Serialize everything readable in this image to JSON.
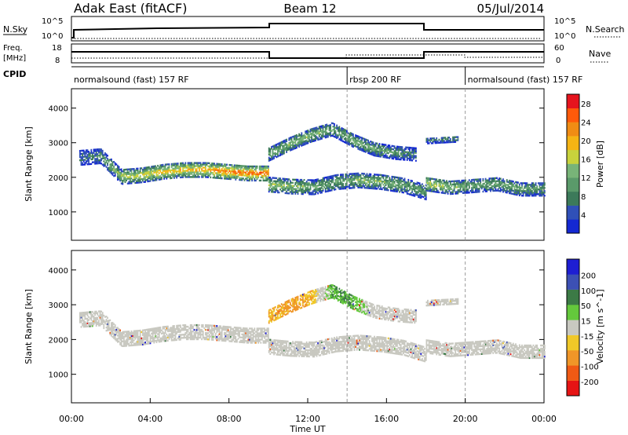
{
  "header": {
    "station": "Adak East (fitACF)",
    "beam": "Beam 12",
    "date": "05/Jul/2014"
  },
  "strips": {
    "nsky_label": "N.Sky",
    "nsearch_label": "N.Search",
    "log_ticks": [
      "10^5",
      "10^0"
    ],
    "freq_label_1": "Freq.",
    "freq_label_2": "[MHz]",
    "freq_ticks": [
      "18",
      "8"
    ],
    "nave_label": "Nave",
    "nave_ticks": [
      "60",
      "0"
    ],
    "cpid_label": "CPID",
    "cpid_segments": [
      {
        "label": "normalsound (fast) 157 RF",
        "start_hour": 0,
        "end_hour": 14
      },
      {
        "label": "rbsp 200 RF",
        "start_hour": 14,
        "end_hour": 20
      },
      {
        "label": "normalsound (fast) 157 RF",
        "start_hour": 20,
        "end_hour": 24
      }
    ]
  },
  "chart_data": [
    {
      "type": "heatmap",
      "title": "",
      "ylabel": "Slant Range [km]",
      "ylim": [
        180,
        4560
      ],
      "yticks": [
        1000,
        2000,
        3000,
        4000
      ],
      "xlim": [
        0,
        24
      ],
      "colorbar": {
        "label": "Power [dB]",
        "ticks": [
          4,
          8,
          12,
          16,
          20,
          24,
          28
        ],
        "range": [
          0,
          30
        ],
        "colors": [
          "#1428d2",
          "#3050b8",
          "#3c7a5a",
          "#5a9a6a",
          "#78b478",
          "#c8d23c",
          "#f5b414",
          "#f08c14",
          "#ff5a0a",
          "#e6141e"
        ]
      },
      "echo_bands": [
        {
          "start_hour": 0.4,
          "end_hour": 10.0,
          "range_km": [
            2550,
            2600,
            2000,
            2050,
            2150,
            2200,
            2200,
            2150,
            2100,
            2100
          ],
          "width_km": 420,
          "level_db": [
            6,
            10,
            16,
            18,
            20,
            20,
            22,
            24,
            25,
            26
          ]
        },
        {
          "start_hour": 10.0,
          "end_hour": 18.0,
          "range_km": [
            1780,
            1720,
            1700,
            1850,
            1900,
            1850,
            1750,
            1550
          ],
          "width_km": 420,
          "level_db": [
            16,
            14,
            12,
            12,
            14,
            14,
            12,
            10
          ]
        },
        {
          "start_hour": 10.0,
          "end_hour": 17.5,
          "range_km": [
            2650,
            2950,
            3200,
            3380,
            3050,
            2800,
            2700,
            2650
          ],
          "width_km": 380,
          "level_db": [
            12,
            14,
            14,
            12,
            14,
            12,
            10,
            8
          ]
        },
        {
          "start_hour": 18.0,
          "end_hour": 19.6,
          "range_km": [
            3050,
            3100
          ],
          "width_km": 180,
          "level_db": [
            8,
            8
          ]
        },
        {
          "start_hour": 18.0,
          "end_hour": 24.0,
          "range_km": [
            1800,
            1700,
            1750,
            1800,
            1650,
            1650
          ],
          "width_km": 400,
          "level_db": [
            18,
            14,
            12,
            12,
            12,
            10
          ]
        }
      ]
    },
    {
      "type": "heatmap",
      "title": "",
      "ylabel": "Slant Range [km]",
      "xlabel": "Time UT",
      "ylim": [
        180,
        4560
      ],
      "yticks": [
        1000,
        2000,
        3000,
        4000
      ],
      "xlim": [
        0,
        24
      ],
      "xticks": [
        "00:00",
        "04:00",
        "08:00",
        "12:00",
        "16:00",
        "20:00",
        "00:00"
      ],
      "colorbar": {
        "label": "Velocity [m s^-1]",
        "ticks": [
          200,
          100,
          50,
          15,
          -15,
          -50,
          -100,
          -200
        ],
        "colors": [
          "#1e1ed2",
          "#3c50b4",
          "#3c7a46",
          "#64c83c",
          "#c8c8c0",
          "#f0c828",
          "#f09628",
          "#f05a14",
          "#e61414"
        ]
      },
      "echo_bands": [
        {
          "start_hour": 0.4,
          "end_hour": 10.0,
          "range_km": [
            2550,
            2600,
            2000,
            2050,
            2150,
            2200,
            2200,
            2150,
            2100,
            2100
          ],
          "width_km": 420,
          "velocity": [
            0,
            0,
            0,
            0,
            0,
            0,
            0,
            0,
            0,
            0
          ]
        },
        {
          "start_hour": 10.0,
          "end_hour": 18.0,
          "range_km": [
            1780,
            1720,
            1700,
            1850,
            1900,
            1850,
            1750,
            1550
          ],
          "width_km": 420,
          "velocity": [
            0,
            0,
            0,
            0,
            0,
            0,
            0,
            0
          ]
        },
        {
          "start_hour": 10.0,
          "end_hour": 17.5,
          "range_km": [
            2650,
            2950,
            3200,
            3380,
            3050,
            2800,
            2700,
            2650
          ],
          "width_km": 380,
          "velocity": [
            -30,
            -40,
            -30,
            30,
            30,
            0,
            0,
            0
          ]
        },
        {
          "start_hour": 18.0,
          "end_hour": 19.6,
          "range_km": [
            3050,
            3100
          ],
          "width_km": 180,
          "velocity": [
            0,
            0
          ]
        },
        {
          "start_hour": 18.0,
          "end_hour": 24.0,
          "range_km": [
            1800,
            1700,
            1750,
            1800,
            1650,
            1650
          ],
          "width_km": 400,
          "velocity": [
            0,
            0,
            0,
            0,
            0,
            0
          ]
        }
      ]
    }
  ]
}
